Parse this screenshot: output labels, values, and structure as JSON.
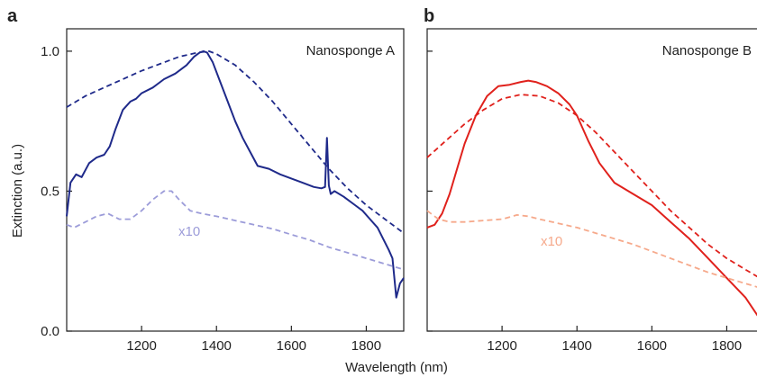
{
  "figure": {
    "ylabel": "Extinction (a.u.)",
    "xlabel": "Wavelength (nm)"
  },
  "chart_data": [
    {
      "panel": "a",
      "type": "line",
      "title": "Nanosponge A",
      "xlabel": "Wavelength (nm)",
      "ylabel": "Extinction (a.u.)",
      "xlim": [
        1000,
        1900
      ],
      "ylim": [
        0,
        1.08
      ],
      "xticks": [
        1200,
        1400,
        1600,
        1800
      ],
      "yticks": [
        0.0,
        0.5,
        1.0
      ],
      "ytick_labels": [
        "0.0",
        "0.5",
        "1.0"
      ],
      "annotation": "x10",
      "series": [
        {
          "style": "solid",
          "color": "#1f2a8a",
          "x": [
            1000,
            1010,
            1025,
            1040,
            1060,
            1080,
            1100,
            1115,
            1130,
            1150,
            1170,
            1185,
            1200,
            1230,
            1260,
            1290,
            1320,
            1340,
            1355,
            1365,
            1375,
            1390,
            1410,
            1430,
            1450,
            1470,
            1490,
            1510,
            1540,
            1570,
            1600,
            1630,
            1660,
            1680,
            1690,
            1695,
            1700,
            1705,
            1715,
            1740,
            1770,
            1790,
            1810,
            1830,
            1845,
            1860,
            1870,
            1880,
            1890,
            1900
          ],
          "y": [
            0.41,
            0.53,
            0.56,
            0.55,
            0.6,
            0.62,
            0.63,
            0.66,
            0.72,
            0.79,
            0.82,
            0.83,
            0.85,
            0.87,
            0.9,
            0.92,
            0.95,
            0.98,
            0.995,
            1.0,
            0.995,
            0.96,
            0.89,
            0.82,
            0.75,
            0.69,
            0.64,
            0.59,
            0.58,
            0.56,
            0.545,
            0.53,
            0.515,
            0.51,
            0.515,
            0.69,
            0.52,
            0.49,
            0.5,
            0.48,
            0.45,
            0.43,
            0.4,
            0.37,
            0.33,
            0.29,
            0.26,
            0.12,
            0.17,
            0.19
          ]
        },
        {
          "style": "dashed",
          "color": "#1f2a8a",
          "x": [
            1000,
            1050,
            1100,
            1150,
            1200,
            1250,
            1300,
            1350,
            1380,
            1400,
            1450,
            1500,
            1550,
            1600,
            1650,
            1700,
            1750,
            1800,
            1850,
            1900
          ],
          "y": [
            0.8,
            0.84,
            0.87,
            0.9,
            0.93,
            0.955,
            0.98,
            0.995,
            1.0,
            0.99,
            0.95,
            0.89,
            0.82,
            0.74,
            0.66,
            0.58,
            0.51,
            0.45,
            0.4,
            0.35
          ]
        },
        {
          "style": "dashed",
          "color": "#9c9cd9",
          "name": "x10",
          "x": [
            1000,
            1020,
            1050,
            1080,
            1110,
            1140,
            1170,
            1200,
            1230,
            1260,
            1280,
            1300,
            1330,
            1360,
            1400,
            1450,
            1500,
            1550,
            1600,
            1650,
            1700,
            1750,
            1800,
            1850,
            1900
          ],
          "y": [
            0.38,
            0.37,
            0.39,
            0.41,
            0.42,
            0.4,
            0.4,
            0.43,
            0.47,
            0.5,
            0.5,
            0.47,
            0.43,
            0.42,
            0.41,
            0.395,
            0.38,
            0.365,
            0.345,
            0.325,
            0.3,
            0.28,
            0.26,
            0.24,
            0.22
          ]
        }
      ]
    },
    {
      "panel": "b",
      "type": "line",
      "title": "Nanosponge B",
      "xlabel": "Wavelength (nm)",
      "xlim": [
        1000,
        1900
      ],
      "ylim": [
        0,
        1.08
      ],
      "xticks": [
        1200,
        1400,
        1600,
        1800
      ],
      "yticks": [
        0.0,
        0.5,
        1.0
      ],
      "annotation": "x10",
      "series": [
        {
          "style": "solid",
          "color": "#e0211c",
          "x": [
            1000,
            1020,
            1040,
            1060,
            1080,
            1100,
            1130,
            1160,
            1190,
            1220,
            1250,
            1270,
            1290,
            1320,
            1350,
            1380,
            1400,
            1430,
            1460,
            1500,
            1550,
            1600,
            1650,
            1700,
            1750,
            1800,
            1850,
            1880,
            1900
          ],
          "y": [
            0.37,
            0.38,
            0.42,
            0.49,
            0.58,
            0.67,
            0.77,
            0.84,
            0.875,
            0.88,
            0.89,
            0.895,
            0.89,
            0.875,
            0.85,
            0.81,
            0.77,
            0.68,
            0.6,
            0.53,
            0.49,
            0.45,
            0.39,
            0.33,
            0.26,
            0.19,
            0.12,
            0.06,
            0.02
          ]
        },
        {
          "style": "dashed",
          "color": "#e0211c",
          "x": [
            1000,
            1050,
            1100,
            1150,
            1200,
            1250,
            1300,
            1350,
            1400,
            1450,
            1500,
            1550,
            1600,
            1650,
            1700,
            1750,
            1800,
            1850,
            1900
          ],
          "y": [
            0.62,
            0.68,
            0.74,
            0.79,
            0.83,
            0.845,
            0.84,
            0.815,
            0.77,
            0.71,
            0.64,
            0.57,
            0.5,
            0.43,
            0.37,
            0.31,
            0.26,
            0.22,
            0.18
          ]
        },
        {
          "style": "dashed",
          "color": "#f6a98b",
          "name": "x10",
          "x": [
            1000,
            1030,
            1060,
            1100,
            1150,
            1200,
            1240,
            1270,
            1300,
            1350,
            1400,
            1450,
            1500,
            1550,
            1600,
            1650,
            1700,
            1750,
            1800,
            1850,
            1900
          ],
          "y": [
            0.43,
            0.4,
            0.39,
            0.39,
            0.395,
            0.4,
            0.415,
            0.41,
            0.4,
            0.385,
            0.37,
            0.35,
            0.33,
            0.31,
            0.285,
            0.26,
            0.235,
            0.21,
            0.19,
            0.17,
            0.15
          ]
        }
      ]
    }
  ]
}
